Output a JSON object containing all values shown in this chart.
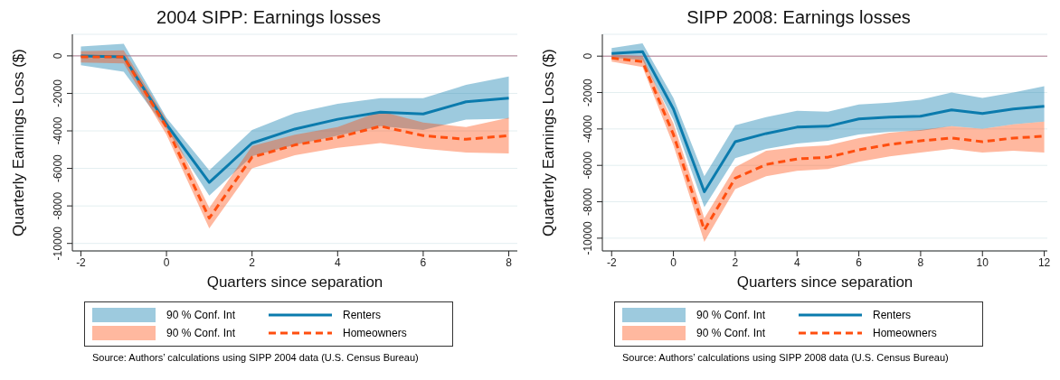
{
  "chart_data": [
    {
      "type": "line",
      "title": "2004 SIPP: Earnings losses",
      "xlabel": "Quarters since separation",
      "ylabel": "Quarterly Earnings Loss ($)",
      "x": [
        -2,
        -1,
        0,
        1,
        2,
        3,
        4,
        5,
        6,
        7,
        8
      ],
      "series": [
        {
          "name": "Renters",
          "color": "#0b7bad",
          "line_style": "solid",
          "values": [
            0,
            -50,
            -3650,
            -6750,
            -4650,
            -3900,
            -3380,
            -3000,
            -3100,
            -2450,
            -2250
          ],
          "lower": [
            -500,
            -850,
            -3900,
            -7450,
            -5350,
            -4750,
            -4250,
            -3750,
            -3950,
            -3400,
            -3350
          ],
          "upper": [
            500,
            650,
            -3300,
            -6100,
            -3950,
            -3050,
            -2550,
            -2250,
            -2250,
            -1550,
            -1100
          ]
        },
        {
          "name": "Homeowners",
          "color": "#ff4e0f",
          "line_style": "dashed",
          "values": [
            -50,
            -50,
            -3800,
            -8650,
            -5400,
            -4750,
            -4350,
            -3750,
            -4250,
            -4450,
            -4250
          ],
          "lower": [
            -350,
            -400,
            -4200,
            -9200,
            -6000,
            -5300,
            -4900,
            -4650,
            -4950,
            -5150,
            -5200
          ],
          "upper": [
            250,
            300,
            -3400,
            -8100,
            -4800,
            -4200,
            -3800,
            -2950,
            -3550,
            -3800,
            -3300
          ]
        }
      ],
      "xlim": [
        -2.2,
        8.2
      ],
      "xticks": [
        -2,
        0,
        2,
        4,
        6,
        8
      ],
      "ylim": [
        -10400,
        1150
      ],
      "yticks": [
        -10000,
        -8000,
        -6000,
        -4000,
        -2000,
        0
      ],
      "ref_lines": [
        {
          "axis": "y",
          "value": 0,
          "color": "#b07a8e"
        }
      ],
      "grid": "y",
      "legend": "bottom",
      "marker": "none",
      "annotations": [
        "90 % Conf. Int",
        "90 % Conf. Int",
        "Source: Authors’ calculations using SIPP 2004 data (U.S. Census Bureau)"
      ]
    },
    {
      "type": "line",
      "title": "SIPP 2008: Earnings losses",
      "xlabel": "Quarters since separation",
      "ylabel": "Quarterly Earnings Loss ($)",
      "x": [
        -2,
        -1,
        0,
        1,
        2,
        3,
        4,
        5,
        6,
        7,
        8,
        9,
        10,
        11,
        12
      ],
      "series": [
        {
          "name": "Renters",
          "color": "#0b7bad",
          "line_style": "solid",
          "values": [
            150,
            250,
            -2900,
            -7450,
            -4700,
            -4250,
            -3900,
            -3850,
            -3450,
            -3350,
            -3300,
            -2950,
            -3150,
            -2900,
            -2750
          ],
          "lower": [
            -100,
            -200,
            -3500,
            -8300,
            -5600,
            -5100,
            -4800,
            -4650,
            -4300,
            -4150,
            -4100,
            -3850,
            -4000,
            -3750,
            -3600
          ],
          "upper": [
            450,
            700,
            -2300,
            -6600,
            -3800,
            -3350,
            -3000,
            -3050,
            -2650,
            -2550,
            -2400,
            -2000,
            -2300,
            -2000,
            -1650
          ]
        },
        {
          "name": "Homeowners",
          "color": "#ff4e0f",
          "line_style": "dashed",
          "values": [
            -100,
            -300,
            -4300,
            -9550,
            -6700,
            -5950,
            -5650,
            -5550,
            -5150,
            -4850,
            -4650,
            -4500,
            -4700,
            -4500,
            -4400
          ],
          "lower": [
            -300,
            -600,
            -4900,
            -10200,
            -7300,
            -6600,
            -6300,
            -6200,
            -5800,
            -5500,
            -5300,
            -5100,
            -5300,
            -5200,
            -5300
          ],
          "upper": [
            100,
            0,
            -3700,
            -8900,
            -6100,
            -5200,
            -5000,
            -4900,
            -4500,
            -4200,
            -4050,
            -3850,
            -4000,
            -3750,
            -3600
          ]
        }
      ],
      "xlim": [
        -2.3,
        12.1
      ],
      "xticks": [
        -2,
        0,
        2,
        4,
        6,
        8,
        10,
        12
      ],
      "ylim": [
        -10700,
        1200
      ],
      "yticks": [
        -10000,
        -8000,
        -6000,
        -4000,
        -2000,
        0
      ],
      "ref_lines": [
        {
          "axis": "y",
          "value": 0,
          "color": "#b07a8e"
        }
      ],
      "grid": "y",
      "legend": "bottom",
      "marker": "none",
      "annotations": [
        "90 % Conf. Int",
        "90 % Conf. Int",
        "Source: Authors’ calculations using SIPP 2008 data (U.S. Census Bureau)"
      ]
    }
  ]
}
